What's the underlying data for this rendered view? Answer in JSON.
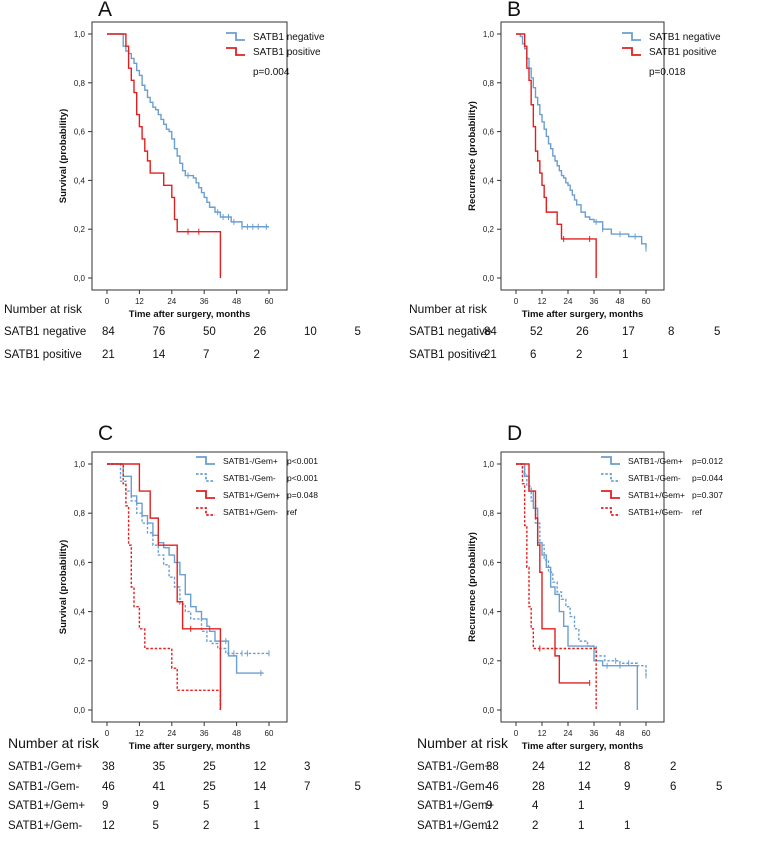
{
  "panels": [
    {
      "label": "A",
      "xlabel": "Time after surgery, months",
      "ylabel": "Survival (probability)",
      "xticks": [
        "0",
        "12",
        "24",
        "36",
        "48",
        "60"
      ],
      "yticks": [
        "0,0",
        "0,2",
        "0,4",
        "0,6",
        "0,8",
        "1,0"
      ],
      "legend": [
        {
          "name": "SATB1 negative",
          "p": "",
          "dashed": false,
          "color": "#6a9fd0"
        },
        {
          "name": "SATB1 positive",
          "p": "",
          "dashed": false,
          "color": "#e02020"
        }
      ],
      "pvalue": "p=0.004",
      "risk_title": "Number at risk",
      "risk_rows": [
        {
          "name": "SATB1 negative",
          "values": [
            "84",
            "76",
            "50",
            "26",
            "10",
            "5"
          ]
        },
        {
          "name": "SATB1 positive",
          "values": [
            "21",
            "14",
            "7",
            "2"
          ]
        }
      ]
    },
    {
      "label": "B",
      "xlabel": "Time after surgery, months",
      "ylabel": "Recurrence (probability)",
      "xticks": [
        "0",
        "12",
        "24",
        "36",
        "48",
        "60"
      ],
      "yticks": [
        "0,0",
        "0,2",
        "0,4",
        "0,6",
        "0,8",
        "1,0"
      ],
      "legend": [
        {
          "name": "SATB1 negative",
          "p": "",
          "dashed": false,
          "color": "#6a9fd0"
        },
        {
          "name": "SATB1 positive",
          "p": "",
          "dashed": false,
          "color": "#e02020"
        }
      ],
      "pvalue": "p=0.018",
      "risk_title": "Number at risk",
      "risk_rows": [
        {
          "name": "SATB1 negative",
          "values": [
            "84",
            "52",
            "26",
            "17",
            "8",
            "5"
          ]
        },
        {
          "name": "SATB1 positive",
          "values": [
            "21",
            "6",
            "2",
            "1"
          ]
        }
      ]
    },
    {
      "label": "C",
      "xlabel": "Time after surgery, months",
      "ylabel": "Survival (probability)",
      "xticks": [
        "0",
        "12",
        "24",
        "36",
        "48",
        "60"
      ],
      "yticks": [
        "0,0",
        "0,2",
        "0,4",
        "0,6",
        "0,8",
        "1,0"
      ],
      "legend": [
        {
          "name": "SATB1-/Gem+",
          "p": "p<0.001",
          "dashed": false,
          "color": "#6a9fd0"
        },
        {
          "name": "SATB1-/Gem-",
          "p": "p<0.001",
          "dashed": true,
          "color": "#6a9fd0"
        },
        {
          "name": "SATB1+/Gem+",
          "p": "p=0.048",
          "dashed": false,
          "color": "#e02020"
        },
        {
          "name": "SATB1+/Gem-",
          "p": "ref",
          "dashed": true,
          "color": "#e02020"
        }
      ],
      "pvalue": "",
      "risk_title": "Number at risk",
      "risk_rows": [
        {
          "name": "SATB1-/Gem+",
          "values": [
            "38",
            "35",
            "25",
            "12",
            "3"
          ]
        },
        {
          "name": "SATB1-/Gem-",
          "values": [
            "46",
            "41",
            "25",
            "14",
            "7",
            "5"
          ]
        },
        {
          "name": "SATB1+/Gem+",
          "values": [
            "9",
            "9",
            "5",
            "1"
          ]
        },
        {
          "name": "SATB1+/Gem-",
          "values": [
            "12",
            "5",
            "2",
            "1"
          ]
        }
      ]
    },
    {
      "label": "D",
      "xlabel": "Time after surgery, months",
      "ylabel": "Recurrence (probability)",
      "xticks": [
        "0",
        "12",
        "24",
        "36",
        "48",
        "60"
      ],
      "yticks": [
        "0,0",
        "0,2",
        "0,4",
        "0,6",
        "0,8",
        "1,0"
      ],
      "legend": [
        {
          "name": "SATB1-/Gem+",
          "p": "p=0.012",
          "dashed": false,
          "color": "#6a9fd0"
        },
        {
          "name": "SATB1-/Gem-",
          "p": "p=0.044",
          "dashed": true,
          "color": "#6a9fd0"
        },
        {
          "name": "SATB1+/Gem+",
          "p": "p=0.307",
          "dashed": false,
          "color": "#e02020"
        },
        {
          "name": "SATB1+/Gem-",
          "p": "ref",
          "dashed": true,
          "color": "#e02020"
        }
      ],
      "pvalue": "",
      "risk_title": "Number at risk",
      "risk_rows": [
        {
          "name": "SATB1-/Gem+",
          "values": [
            "38",
            "24",
            "12",
            "8",
            "2"
          ]
        },
        {
          "name": "SATB1-/Gem-",
          "values": [
            "46",
            "28",
            "14",
            "9",
            "6",
            "5"
          ]
        },
        {
          "name": "SATB1+/Gem+",
          "values": [
            "9",
            "4",
            "1"
          ]
        },
        {
          "name": "SATB1+/Gem-",
          "values": [
            "12",
            "2",
            "1",
            "1"
          ]
        }
      ]
    }
  ],
  "chart_data": [
    {
      "type": "line",
      "xlim": [
        0,
        60
      ],
      "ylim": [
        0,
        1
      ],
      "series": [
        {
          "name": "SATB1 negative",
          "color": "#6a9fd0",
          "dashed": false,
          "x": [
            0,
            6,
            7,
            8,
            9,
            10,
            11,
            12,
            13,
            14,
            15,
            16,
            17,
            18,
            19,
            20,
            21,
            22,
            23,
            24,
            25,
            26,
            27,
            28,
            29,
            30,
            31,
            32,
            33,
            34,
            35,
            36,
            37,
            38,
            40,
            42,
            44,
            46,
            50,
            54,
            58,
            60
          ],
          "y": [
            1,
            0.95,
            0.93,
            0.92,
            0.9,
            0.88,
            0.85,
            0.83,
            0.79,
            0.77,
            0.74,
            0.72,
            0.7,
            0.69,
            0.67,
            0.65,
            0.63,
            0.61,
            0.6,
            0.57,
            0.53,
            0.5,
            0.47,
            0.44,
            0.42,
            0.42,
            0.42,
            0.41,
            0.39,
            0.37,
            0.35,
            0.33,
            0.31,
            0.29,
            0.27,
            0.25,
            0.25,
            0.23,
            0.21,
            0.21,
            0.21,
            0.21
          ],
          "censor_x": [
            30,
            41,
            43,
            45,
            47,
            50,
            52,
            54,
            56,
            59
          ]
        },
        {
          "name": "SATB1 positive",
          "color": "#e02020",
          "dashed": false,
          "x": [
            0,
            7,
            8,
            9,
            10,
            11,
            12,
            13,
            14,
            15,
            16,
            18,
            19,
            21,
            24,
            25,
            26,
            28,
            36,
            41,
            42
          ],
          "y": [
            1,
            0.95,
            0.86,
            0.81,
            0.76,
            0.67,
            0.62,
            0.57,
            0.52,
            0.48,
            0.43,
            0.43,
            0.43,
            0.38,
            0.33,
            0.24,
            0.19,
            0.19,
            0.19,
            0.19,
            0
          ],
          "censor_x": [
            30,
            34
          ]
        }
      ]
    },
    {
      "type": "line",
      "xlim": [
        0,
        60
      ],
      "ylim": [
        0,
        1
      ],
      "series": [
        {
          "name": "SATB1 negative",
          "color": "#6a9fd0",
          "dashed": false,
          "x": [
            0,
            2,
            3,
            4,
            5,
            6,
            7,
            8,
            9,
            10,
            11,
            12,
            13,
            14,
            15,
            16,
            17,
            18,
            19,
            20,
            21,
            22,
            23,
            24,
            25,
            26,
            27,
            28,
            30,
            32,
            34,
            36,
            40,
            44,
            48,
            52,
            56,
            58,
            60
          ],
          "y": [
            1,
            0.99,
            0.96,
            0.94,
            0.9,
            0.86,
            0.82,
            0.78,
            0.74,
            0.71,
            0.67,
            0.64,
            0.61,
            0.58,
            0.55,
            0.53,
            0.5,
            0.48,
            0.46,
            0.44,
            0.42,
            0.41,
            0.39,
            0.38,
            0.36,
            0.34,
            0.32,
            0.3,
            0.27,
            0.25,
            0.24,
            0.23,
            0.2,
            0.18,
            0.18,
            0.17,
            0.17,
            0.14,
            0.12
          ],
          "censor_x": [
            37,
            40,
            48,
            55,
            60
          ]
        },
        {
          "name": "SATB1 positive",
          "color": "#e02020",
          "dashed": false,
          "x": [
            0,
            4,
            5,
            6,
            7,
            8,
            9,
            10,
            11,
            12,
            13,
            14,
            17,
            19,
            21,
            24,
            30,
            36,
            37
          ],
          "y": [
            1,
            0.95,
            0.86,
            0.81,
            0.71,
            0.62,
            0.52,
            0.48,
            0.43,
            0.38,
            0.33,
            0.27,
            0.27,
            0.22,
            0.16,
            0.16,
            0.16,
            0.16,
            0
          ],
          "censor_x": [
            22,
            34
          ]
        }
      ]
    },
    {
      "type": "line",
      "xlim": [
        0,
        60
      ],
      "ylim": [
        0,
        1
      ],
      "series": [
        {
          "name": "SATB1-/Gem+",
          "color": "#6a9fd0",
          "dashed": false,
          "x": [
            0,
            6,
            9,
            11,
            13,
            15,
            17,
            19,
            21,
            23,
            25,
            27,
            29,
            31,
            33,
            35,
            37,
            38,
            40,
            42,
            45,
            48,
            58
          ],
          "y": [
            1,
            0.95,
            0.87,
            0.84,
            0.79,
            0.76,
            0.71,
            0.68,
            0.66,
            0.63,
            0.6,
            0.55,
            0.47,
            0.42,
            0.4,
            0.37,
            0.34,
            0.32,
            0.28,
            0.28,
            0.22,
            0.15,
            0.15
          ],
          "censor_x": [
            44,
            57
          ]
        },
        {
          "name": "SATB1-/Gem-",
          "color": "#6a9fd0",
          "dashed": true,
          "x": [
            0,
            5,
            7,
            9,
            11,
            13,
            15,
            17,
            19,
            21,
            23,
            25,
            27,
            29,
            31,
            33,
            35,
            37,
            39,
            41,
            44,
            52,
            60
          ],
          "y": [
            1,
            0.93,
            0.89,
            0.85,
            0.8,
            0.76,
            0.72,
            0.67,
            0.63,
            0.59,
            0.54,
            0.5,
            0.43,
            0.4,
            0.37,
            0.37,
            0.32,
            0.28,
            0.27,
            0.25,
            0.23,
            0.23,
            0.23
          ],
          "censor_x": [
            47,
            50,
            52,
            60
          ]
        },
        {
          "name": "SATB1+/Gem+",
          "color": "#e02020",
          "dashed": false,
          "x": [
            0,
            7,
            12,
            16,
            19,
            23,
            26,
            28,
            34,
            40,
            41,
            42
          ],
          "y": [
            1,
            1,
            0.89,
            0.78,
            0.67,
            0.67,
            0.44,
            0.33,
            0.33,
            0.33,
            0.33,
            0
          ],
          "censor_x": [
            31
          ]
        },
        {
          "name": "SATB1+/Gem-",
          "color": "#e02020",
          "dashed": true,
          "x": [
            0,
            6,
            7,
            8,
            9,
            10,
            12,
            14,
            18,
            22,
            24,
            26,
            41,
            42
          ],
          "y": [
            1,
            0.92,
            0.83,
            0.67,
            0.5,
            0.42,
            0.33,
            0.25,
            0.25,
            0.25,
            0.17,
            0.08,
            0.08,
            0
          ],
          "censor_x": []
        }
      ]
    },
    {
      "type": "line",
      "xlim": [
        0,
        60
      ],
      "ylim": [
        0,
        1
      ],
      "series": [
        {
          "name": "SATB1-/Gem+",
          "color": "#6a9fd0",
          "dashed": false,
          "x": [
            0,
            4,
            6,
            8,
            10,
            12,
            14,
            16,
            18,
            20,
            22,
            24,
            26,
            30,
            36,
            40,
            46,
            54,
            55,
            56
          ],
          "y": [
            1,
            0.95,
            0.89,
            0.82,
            0.68,
            0.63,
            0.58,
            0.5,
            0.47,
            0.4,
            0.34,
            0.26,
            0.26,
            0.26,
            0.2,
            0.18,
            0.18,
            0.18,
            0.18,
            0
          ],
          "censor_x": [
            42,
            48
          ]
        },
        {
          "name": "SATB1-/Gem-",
          "color": "#6a9fd0",
          "dashed": true,
          "x": [
            0,
            3,
            5,
            7,
            9,
            11,
            13,
            15,
            17,
            19,
            21,
            23,
            25,
            27,
            29,
            33,
            37,
            41,
            48,
            56,
            60
          ],
          "y": [
            1,
            0.96,
            0.91,
            0.85,
            0.76,
            0.67,
            0.61,
            0.56,
            0.52,
            0.48,
            0.45,
            0.42,
            0.38,
            0.33,
            0.28,
            0.26,
            0.22,
            0.2,
            0.19,
            0.18,
            0.14
          ],
          "censor_x": [
            46,
            52,
            60
          ]
        },
        {
          "name": "SATB1+/Gem+",
          "color": "#e02020",
          "dashed": false,
          "x": [
            0,
            4,
            6,
            7,
            9,
            10,
            11,
            12,
            18,
            20,
            26,
            30,
            34
          ],
          "y": [
            1,
            1,
            0.89,
            0.89,
            0.78,
            0.67,
            0.56,
            0.33,
            0.22,
            0.11,
            0.11,
            0.11,
            0.11
          ],
          "censor_x": [
            34
          ]
        },
        {
          "name": "SATB1+/Gem-",
          "color": "#e02020",
          "dashed": true,
          "x": [
            0,
            3,
            4,
            5,
            6,
            7,
            8,
            9,
            12,
            20,
            30,
            36,
            37
          ],
          "y": [
            1,
            0.92,
            0.75,
            0.58,
            0.42,
            0.33,
            0.25,
            0.25,
            0.25,
            0.25,
            0.25,
            0.25,
            0
          ],
          "censor_x": [
            11
          ]
        }
      ]
    }
  ]
}
